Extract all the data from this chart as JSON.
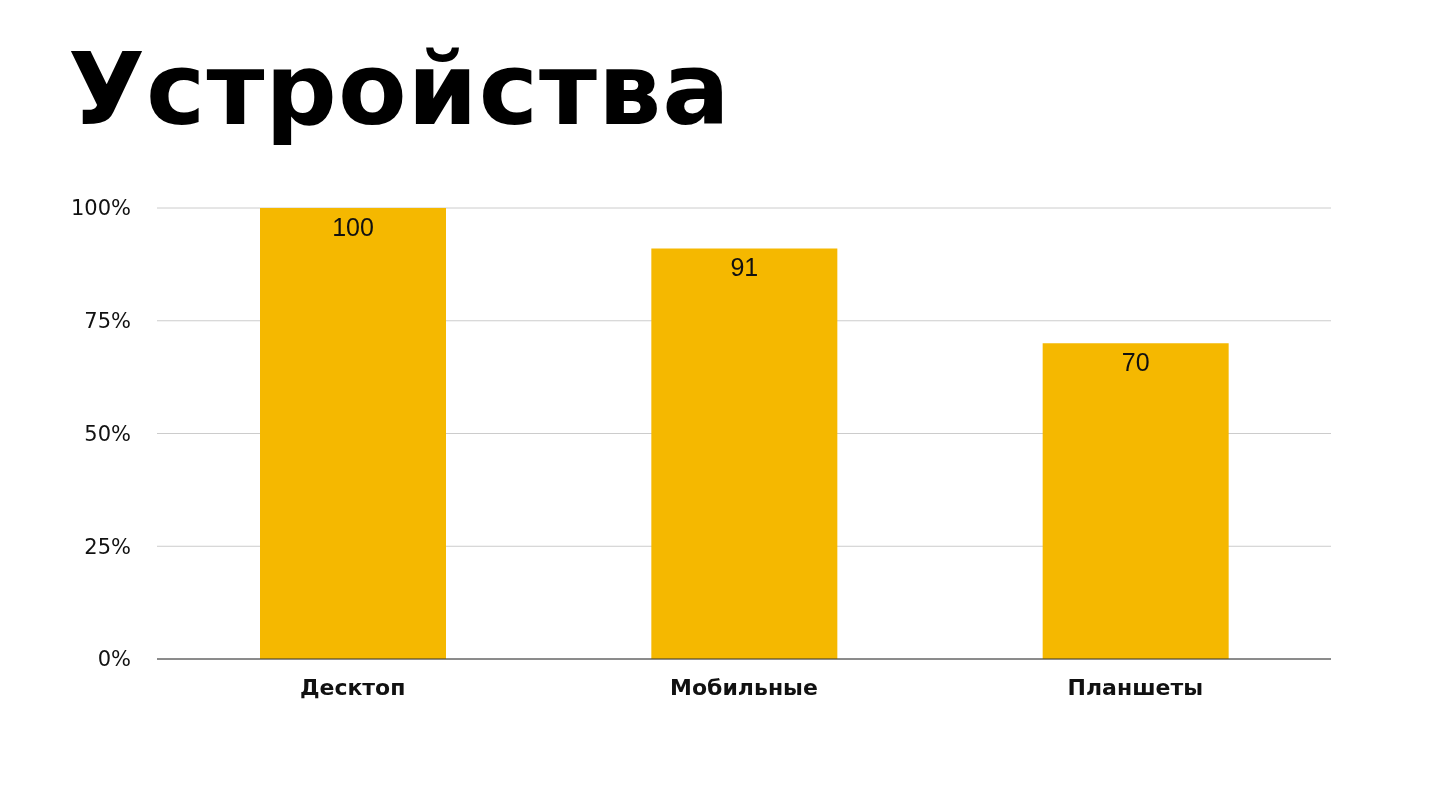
{
  "chart_data": {
    "type": "bar",
    "title": "Устройства",
    "categories": [
      "Десктоп",
      "Мобильные",
      "Планшеты"
    ],
    "values": [
      100,
      91,
      70
    ],
    "color": "#f5b800",
    "ylim": [
      0,
      100
    ],
    "yticks": [
      {
        "value": 0,
        "label": "0%"
      },
      {
        "value": 25,
        "label": "25%"
      },
      {
        "value": 50,
        "label": "50%"
      },
      {
        "value": 75,
        "label": "75%"
      },
      {
        "value": 100,
        "label": "100%"
      }
    ],
    "grid": "y",
    "data_labels": true,
    "legend": false
  }
}
